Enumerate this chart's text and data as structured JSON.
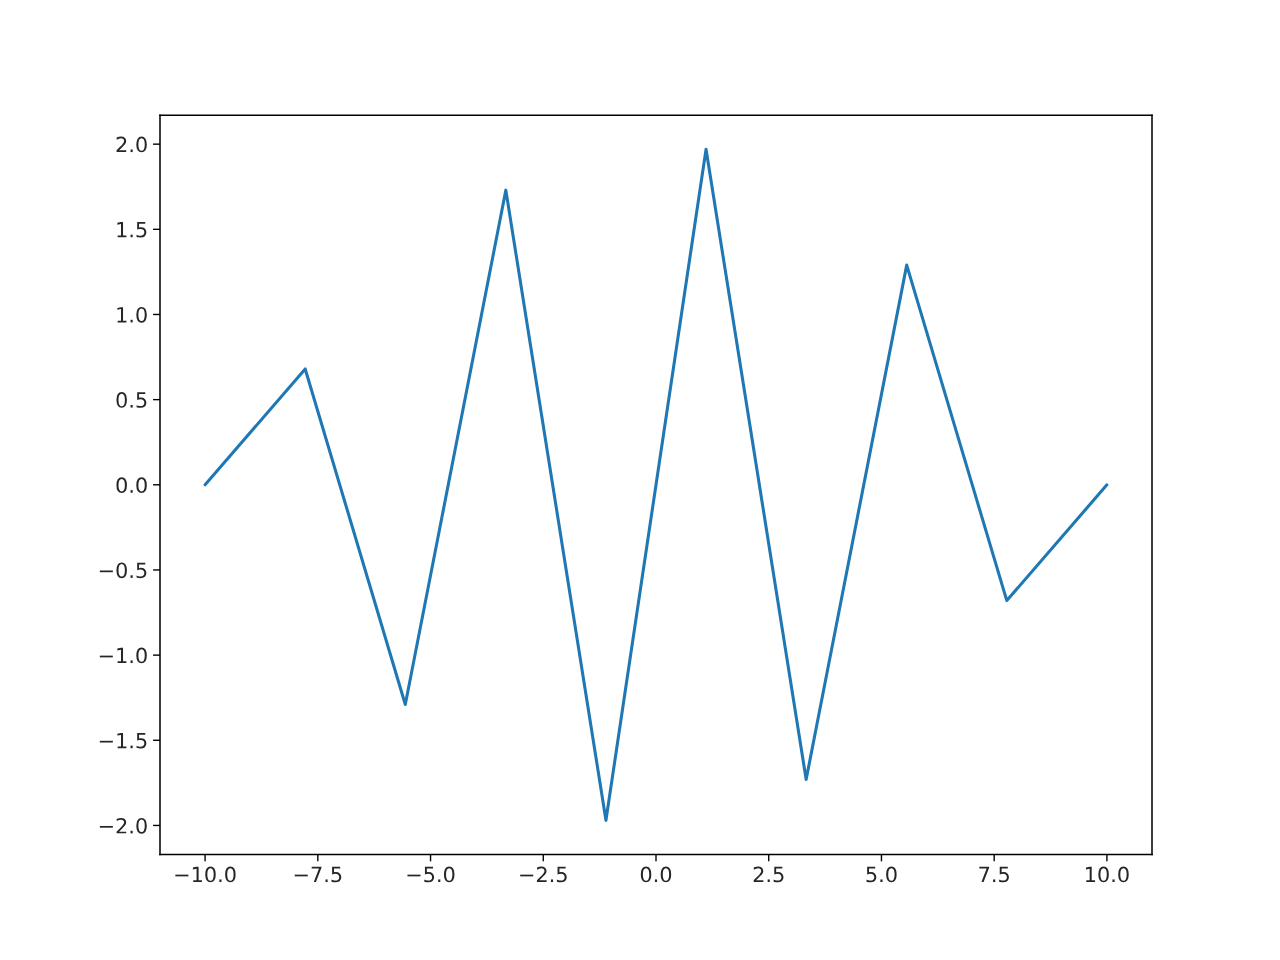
{
  "chart_data": {
    "type": "line",
    "x": [
      -10,
      -7.78,
      -5.56,
      -3.33,
      -1.11,
      1.11,
      3.33,
      5.56,
      7.78,
      10
    ],
    "series": [
      {
        "color": "#1f77b4",
        "values": [
          0,
          0.68,
          -1.29,
          1.73,
          -1.97,
          1.97,
          -1.73,
          1.29,
          -0.68,
          0
        ]
      }
    ],
    "xlim": [
      -11,
      11
    ],
    "ylim": [
      -2.17,
      2.17
    ],
    "xticks": [
      {
        "value": -10,
        "label": "−10.0"
      },
      {
        "value": -7.5,
        "label": "−7.5"
      },
      {
        "value": -5,
        "label": "−5.0"
      },
      {
        "value": -2.5,
        "label": "−2.5"
      },
      {
        "value": 0,
        "label": "0.0"
      },
      {
        "value": 2.5,
        "label": "2.5"
      },
      {
        "value": 5,
        "label": "5.0"
      },
      {
        "value": 7.5,
        "label": "7.5"
      },
      {
        "value": 10,
        "label": "10.0"
      }
    ],
    "yticks": [
      {
        "value": -2,
        "label": "−2.0"
      },
      {
        "value": -1.5,
        "label": "−1.5"
      },
      {
        "value": -1,
        "label": "−1.0"
      },
      {
        "value": -0.5,
        "label": "−0.5"
      },
      {
        "value": 0,
        "label": "0.0"
      },
      {
        "value": 0.5,
        "label": "0.5"
      },
      {
        "value": 1,
        "label": "1.0"
      },
      {
        "value": 1.5,
        "label": "1.5"
      },
      {
        "value": 2,
        "label": "2.0"
      }
    ],
    "grid": false
  }
}
